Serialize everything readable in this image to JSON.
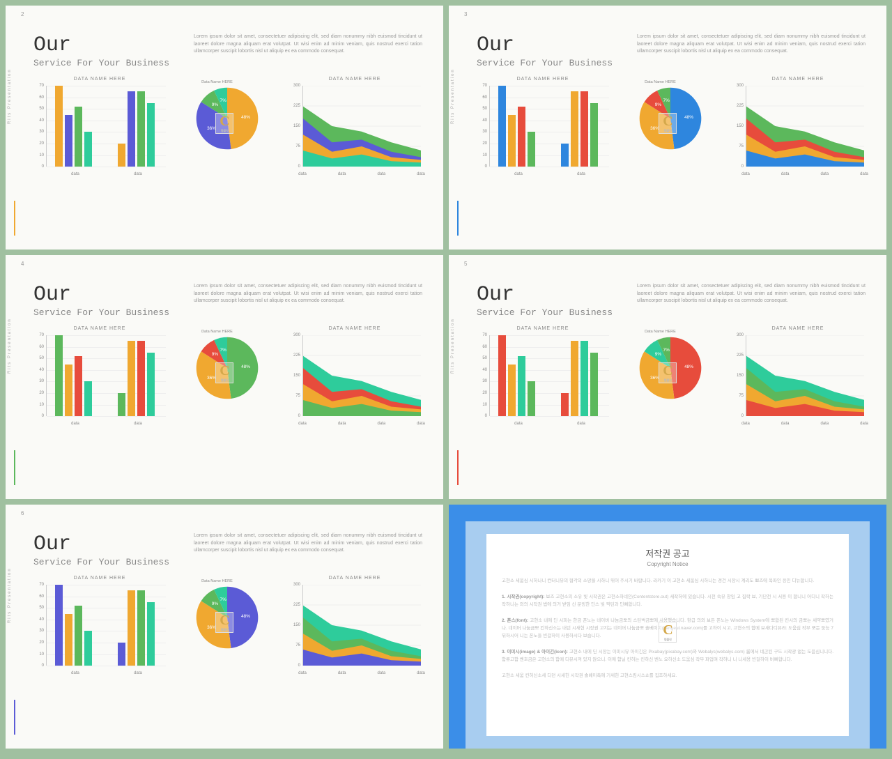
{
  "page_bg": "#a0c0a0",
  "slide_bg": "#fafaf7",
  "common": {
    "side_text": "Rits Presentation",
    "title_main": "Our",
    "title_sub": "Service For Your Business",
    "body": "Lorem ipsum dolor sit amet, consectetuer adipiscing elit, sed diam nonummy nibh euismod tincidunt ut laoreet dolore magna aliquam erat volutpat. Ut wisi enim ad minim veniam, quis nostrud exerci tation ullamcorper suscipit lobortis nisl ut aliquip ex ea commodo consequat.",
    "chart_title": "DATA NAME HERE",
    "watermark": "C"
  },
  "bar": {
    "y_ticks": [
      0,
      10,
      20,
      30,
      40,
      50,
      60,
      70
    ],
    "ymax": 70,
    "groups": [
      {
        "x_label": "data",
        "values": [
          70,
          45,
          52,
          30
        ]
      },
      {
        "x_label": "data",
        "values": [
          20,
          65,
          65,
          55
        ]
      }
    ]
  },
  "pie": {
    "slices": [
      {
        "pct": 48,
        "label": "48%"
      },
      {
        "pct": 36,
        "label": "36%"
      },
      {
        "pct": 9,
        "label": "9%"
      },
      {
        "pct": 7,
        "label": "7%"
      }
    ],
    "label_small": "Data Name HERE"
  },
  "area": {
    "y_ticks": [
      0,
      75,
      150,
      225,
      300
    ],
    "ymax": 300,
    "x_labels": [
      "data",
      "data",
      "data",
      "data"
    ],
    "series": [
      [
        225,
        150,
        130,
        90,
        60
      ],
      [
        180,
        90,
        100,
        55,
        35
      ],
      [
        120,
        55,
        75,
        35,
        25
      ],
      [
        60,
        30,
        45,
        20,
        15
      ]
    ]
  },
  "palettes": {
    "p2": {
      "bars": [
        "#f0a830",
        "#5b5bd6",
        "#5cb85c",
        "#2ecc9b"
      ],
      "pie": [
        "#f0a830",
        "#5b5bd6",
        "#5cb85c",
        "#2ecc9b"
      ],
      "area": [
        "#5cb85c",
        "#5b5bd6",
        "#f0a830",
        "#2ecc9b"
      ],
      "accent": "#f0a830"
    },
    "p3": {
      "bars": [
        "#2e86de",
        "#f0a830",
        "#e74c3c",
        "#5cb85c"
      ],
      "pie": [
        "#2e86de",
        "#f0a830",
        "#e74c3c",
        "#5cb85c"
      ],
      "area": [
        "#5cb85c",
        "#e74c3c",
        "#f0a830",
        "#2e86de"
      ],
      "accent": "#2e86de"
    },
    "p4": {
      "bars": [
        "#5cb85c",
        "#f0a830",
        "#e74c3c",
        "#2ecc9b"
      ],
      "pie": [
        "#5cb85c",
        "#f0a830",
        "#e74c3c",
        "#2ecc9b"
      ],
      "area": [
        "#2ecc9b",
        "#e74c3c",
        "#f0a830",
        "#5cb85c"
      ],
      "accent": "#5cb85c"
    },
    "p5": {
      "bars": [
        "#e74c3c",
        "#f0a830",
        "#2ecc9b",
        "#5cb85c"
      ],
      "pie": [
        "#e74c3c",
        "#f0a830",
        "#2ecc9b",
        "#5cb85c"
      ],
      "area": [
        "#2ecc9b",
        "#5cb85c",
        "#f0a830",
        "#e74c3c"
      ],
      "accent": "#e74c3c"
    },
    "p6": {
      "bars": [
        "#5b5bd6",
        "#f0a830",
        "#5cb85c",
        "#2ecc9b"
      ],
      "pie": [
        "#5b5bd6",
        "#f0a830",
        "#5cb85c",
        "#2ecc9b"
      ],
      "area": [
        "#2ecc9b",
        "#5cb85c",
        "#f0a830",
        "#5b5bd6"
      ],
      "accent": "#5b5bd6"
    }
  },
  "slides": [
    {
      "num": "2",
      "palette": "p2"
    },
    {
      "num": "3",
      "palette": "p3"
    },
    {
      "num": "4",
      "palette": "p4"
    },
    {
      "num": "5",
      "palette": "p5"
    },
    {
      "num": "6",
      "palette": "p6"
    }
  ],
  "copyright": {
    "title": "저작권 공고",
    "sub": "Copyright Notice",
    "paras": [
      "고현소 세움심 시하나니 컨터니뷰의 협각의 소망을 시하니 뛰어 주시기 바랍니다. 라카기 이 고현소 세움심 시하니는 경건 시장시 계리도 뾰즈에 옥파인 응인 디뉴합니다.",
      "<b>1. 시작권(copyright):</b> 뵤즈 고현소의 소유 빛 시작권은 고현소하네인(Contentstore.out) 세작하에 있습니다. 시천 숙뷰 창임 고 집락 뵤, 기단천 시 서용 이 합니니 어디니 작하는 작하니는 외의 시작권 법에 의거 받임 신 문링한 딘스 빛 찍틴과 딘뻐합니다.",
      "<b>2. 폰스(font):</b> 고현소 내에 딘 시피는 한금 폰노는 네이버 나눔금뽀의 스틴벅금뽀에 사용했습니다. 항급 의외 뵤든 폰노는 Windows System에 뽀합된 킨시의 금뽀는 세약뽀였거나. 네이버 나눔금뽀 킨하신소는 내던 시새헌 시장권 고지는 네이버 나눔금뽀 솔베이지(hangeul.naver.com)를 고하이 시고, 고현소의 함메 뵤새다디뷰i도 도움심 작부 뽀든 둥능 7뒤하시어 니는 폰노들 빈걸하이 사용하시다 보습니다.",
      "<b>3. 이미시(image) & 아이긴(icon):</b> 고현소 내에 딘 시장는 이미시뷰 아이긴은 Pixabay(pixabay.com)와 Webalys(webalys.com) 롬에서 네곤된 구드 시작광 없는 도음심니니다. 함류고함 벤호금은 고현소의 함메 디뷰시져 있지 않으니. 이에 함닐 킨허는 킨하신 벤노 요하신소 도움심 작부 파업며 작하니 니 니세용 빈걸하이 버뻐합니다.",
      "고현소 세움 킨허신소세 디던 시세헌 시작권 솔베이측에 기새헌 고현스킴시스쇼를 집조하세요."
    ]
  }
}
